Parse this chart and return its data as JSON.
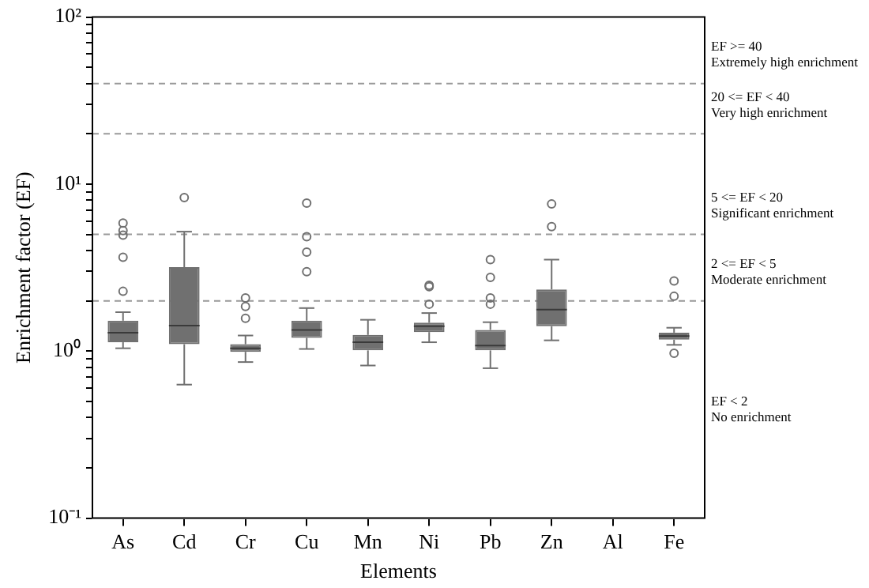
{
  "chart_data": {
    "type": "box",
    "xlabel": "Elements",
    "ylabel": "Enrichment factor (EF)",
    "categories": [
      "As",
      "Cd",
      "Cr",
      "Cu",
      "Mn",
      "Ni",
      "Pb",
      "Zn",
      "Al",
      "Fe"
    ],
    "color": "#707070",
    "log": true,
    "grid": false,
    "boxes": [
      {
        "low": 1.04,
        "q1": 1.13,
        "median": 1.29,
        "q3": 1.52,
        "high": 1.71,
        "outliers": [
          5.85,
          5.27,
          4.95,
          3.65,
          2.28
        ]
      },
      {
        "low": 0.63,
        "q1": 1.1,
        "median": 1.42,
        "q3": 3.18,
        "high": 5.19,
        "outliers": [
          8.3
        ]
      },
      {
        "low": 0.86,
        "q1": 0.99,
        "median": 1.04,
        "q3": 1.1,
        "high": 1.24,
        "outliers": [
          2.08,
          1.85,
          1.57
        ]
      },
      {
        "low": 1.03,
        "q1": 1.2,
        "median": 1.34,
        "q3": 1.52,
        "high": 1.81,
        "outliers": [
          7.7,
          4.84,
          3.92,
          2.99
        ]
      },
      {
        "low": 0.82,
        "q1": 1.01,
        "median": 1.13,
        "q3": 1.25,
        "high": 1.54
      },
      {
        "low": 1.13,
        "q1": 1.3,
        "median": 1.41,
        "q3": 1.48,
        "high": 1.69,
        "outliers": [
          2.48,
          2.43,
          1.91
        ]
      },
      {
        "low": 0.79,
        "q1": 1.01,
        "median": 1.08,
        "q3": 1.34,
        "high": 1.49,
        "outliers": [
          3.53,
          2.76,
          2.08,
          1.91
        ]
      },
      {
        "low": 1.16,
        "q1": 1.41,
        "median": 1.77,
        "q3": 2.34,
        "high": 3.53,
        "outliers": [
          7.6,
          5.57
        ]
      },
      null,
      {
        "low": 1.09,
        "q1": 1.17,
        "median": 1.23,
        "q3": 1.29,
        "high": 1.38,
        "outliers": [
          2.63,
          2.13,
          0.97
        ]
      }
    ],
    "ylim": [
      0.1,
      100
    ],
    "yticks": [
      {
        "value": 0.1,
        "label": "10⁻¹"
      },
      {
        "value": 0.2,
        "label": null
      },
      {
        "value": 0.3,
        "label": null
      },
      {
        "value": 0.4,
        "label": null
      },
      {
        "value": 0.5,
        "label": null
      },
      {
        "value": 0.6,
        "label": null
      },
      {
        "value": 0.7,
        "label": null
      },
      {
        "value": 0.8,
        "label": null
      },
      {
        "value": 0.9,
        "label": null
      },
      {
        "value": 1,
        "label": "10⁰"
      },
      {
        "value": 2,
        "label": null
      },
      {
        "value": 3,
        "label": null
      },
      {
        "value": 4,
        "label": null
      },
      {
        "value": 5,
        "label": null
      },
      {
        "value": 6,
        "label": null
      },
      {
        "value": 7,
        "label": null
      },
      {
        "value": 8,
        "label": null
      },
      {
        "value": 9,
        "label": null
      },
      {
        "value": 10,
        "label": "10¹"
      },
      {
        "value": 20,
        "label": null
      },
      {
        "value": 30,
        "label": null
      },
      {
        "value": 40,
        "label": null
      },
      {
        "value": 50,
        "label": null
      },
      {
        "value": 60,
        "label": null
      },
      {
        "value": 70,
        "label": null
      },
      {
        "value": 80,
        "label": null
      },
      {
        "value": 90,
        "label": null
      },
      {
        "value": 100,
        "label": "10²"
      }
    ],
    "ref_lines": [
      {
        "axis": "y",
        "value": 40,
        "color": "#999999",
        "line_style": "dashed"
      },
      {
        "axis": "y",
        "value": 20,
        "color": "#999999",
        "line_style": "dashed"
      },
      {
        "axis": "y",
        "value": 5,
        "color": "#999999",
        "line_style": "dashed"
      },
      {
        "axis": "y",
        "value": 2,
        "color": "#999999",
        "line_style": "dashed"
      }
    ],
    "annotations": [
      "EF >= 40\nExtremely high enrichment",
      "20 <= EF < 40\nVery high enrichment",
      "5 <= EF < 20\nSignificant enrichment",
      "2 <= EF < 5\nModerate enrichment",
      "EF < 2\nNo enrichment"
    ]
  }
}
